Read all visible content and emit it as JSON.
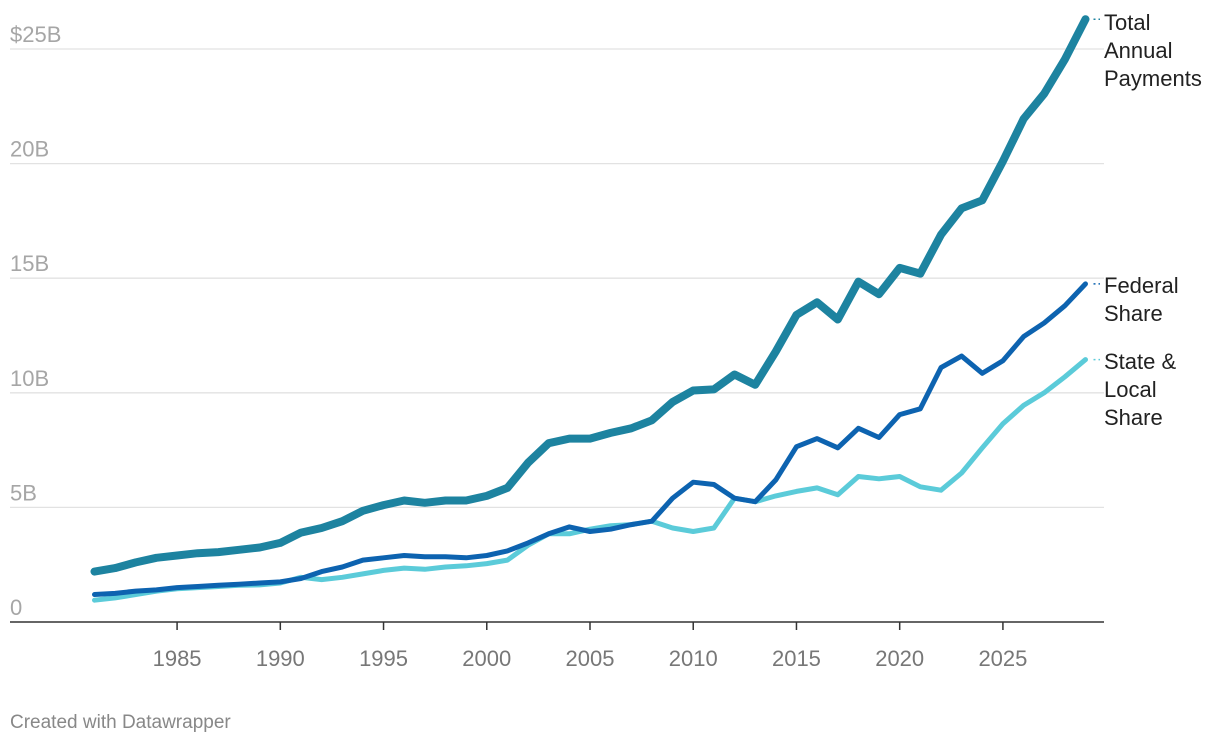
{
  "chart_data": {
    "type": "line",
    "title": "",
    "xlabel": "",
    "ylabel": "",
    "xlim": [
      1981,
      2029
    ],
    "ylim": [
      0,
      25
    ],
    "x_ticks": [
      1985,
      1990,
      1995,
      2000,
      2005,
      2010,
      2015,
      2020,
      2025
    ],
    "y_ticks": [
      {
        "value": 0,
        "label": "0"
      },
      {
        "value": 5,
        "label": "5B"
      },
      {
        "value": 10,
        "label": "10B"
      },
      {
        "value": 15,
        "label": "15B"
      },
      {
        "value": 20,
        "label": "20B"
      },
      {
        "value": 25,
        "label": "$25B"
      }
    ],
    "x": [
      1981,
      1982,
      1983,
      1984,
      1985,
      1986,
      1987,
      1988,
      1989,
      1990,
      1991,
      1992,
      1993,
      1994,
      1995,
      1996,
      1997,
      1998,
      1999,
      2000,
      2001,
      2002,
      2003,
      2004,
      2005,
      2006,
      2007,
      2008,
      2009,
      2010,
      2011,
      2012,
      2013,
      2014,
      2015,
      2016,
      2017,
      2018,
      2019,
      2020,
      2021,
      2022,
      2023,
      2024,
      2025,
      2026,
      2027,
      2028,
      2029
    ],
    "series": [
      {
        "name": "State & Local Share",
        "label_lines": [
          "State &",
          "Local",
          "Share"
        ],
        "color": "#5bcbd9",
        "width": 5,
        "values": [
          0.95,
          1.05,
          1.2,
          1.35,
          1.45,
          1.5,
          1.55,
          1.6,
          1.62,
          1.7,
          1.95,
          1.85,
          1.95,
          2.1,
          2.25,
          2.35,
          2.3,
          2.4,
          2.45,
          2.55,
          2.7,
          3.35,
          3.85,
          3.85,
          4.05,
          4.2,
          4.25,
          4.4,
          4.1,
          3.95,
          4.1,
          5.4,
          5.25,
          5.5,
          5.7,
          5.85,
          5.55,
          6.35,
          6.25,
          6.35,
          5.9,
          5.75,
          6.5,
          7.6,
          8.65,
          9.45,
          10.0,
          10.7,
          11.45
        ]
      },
      {
        "name": "Federal Share",
        "label_lines": [
          "Federal",
          "Share"
        ],
        "color": "#0d63b0",
        "width": 5,
        "values": [
          1.2,
          1.25,
          1.35,
          1.4,
          1.5,
          1.55,
          1.6,
          1.65,
          1.7,
          1.75,
          1.9,
          2.2,
          2.4,
          2.7,
          2.8,
          2.9,
          2.85,
          2.85,
          2.8,
          2.9,
          3.1,
          3.45,
          3.85,
          4.15,
          3.95,
          4.05,
          4.25,
          4.4,
          5.4,
          6.1,
          6.0,
          5.4,
          5.25,
          6.2,
          7.65,
          8.0,
          7.6,
          8.45,
          8.05,
          9.05,
          9.3,
          11.1,
          11.6,
          10.85,
          11.4,
          12.45,
          13.05,
          13.8,
          14.75
        ]
      },
      {
        "name": "Total Annual Payments",
        "label_lines": [
          "Total",
          "Annual",
          "Payments"
        ],
        "color": "#1d83a0",
        "width": 8,
        "values": [
          2.2,
          2.35,
          2.6,
          2.8,
          2.9,
          3.0,
          3.05,
          3.15,
          3.25,
          3.45,
          3.9,
          4.1,
          4.4,
          4.85,
          5.1,
          5.3,
          5.2,
          5.3,
          5.3,
          5.5,
          5.85,
          6.95,
          7.8,
          8.0,
          8.0,
          8.25,
          8.45,
          8.8,
          9.6,
          10.1,
          10.15,
          10.8,
          10.35,
          11.8,
          13.4,
          13.95,
          13.2,
          14.85,
          14.3,
          15.45,
          15.2,
          16.9,
          18.05,
          18.4,
          20.1,
          21.95,
          23.05,
          24.55,
          26.3
        ]
      }
    ]
  },
  "footer": "Created with Datawrapper"
}
